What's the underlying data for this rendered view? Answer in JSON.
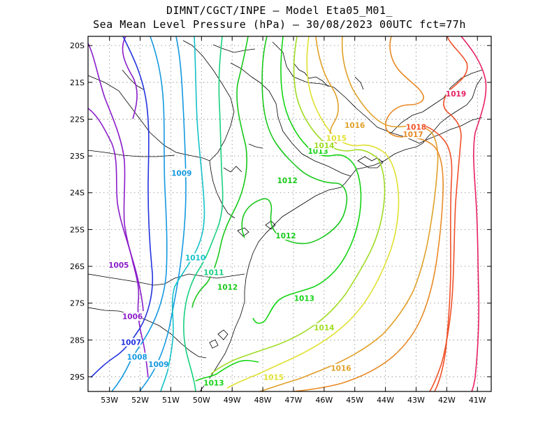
{
  "title_line1": "DIMNT/CGCT/INPE –  Model Eta05_M01_",
  "title_line2": "Sea Mean Level Pressure (hPa) – 30/08/2023 00UTC fct=77h",
  "lat_labels": [
    "20S",
    "21S",
    "22S",
    "23S",
    "24S",
    "25S",
    "26S",
    "27S",
    "28S",
    "29S"
  ],
  "lon_labels": [
    "53W",
    "52W",
    "51W",
    "50W",
    "49W",
    "48W",
    "47W",
    "46W",
    "45W",
    "44W",
    "43W",
    "42W",
    "41W"
  ],
  "colors": {
    "1005": "#8a1cc9",
    "1006": "#8a1cc9",
    "1007": "#2233dd",
    "1008": "#1499e0",
    "1009": "#1499e0",
    "1010": "#14c1c8",
    "1011": "#18d080",
    "1012": "#18c81a",
    "1013": "#14d414",
    "1014": "#a0dc24",
    "1015": "#e0e030",
    "1016": "#e0a028",
    "1017": "#e88a24",
    "1018": "#f05028",
    "1019": "#e82060",
    "coast": "#000000",
    "grid": "#888888"
  },
  "isobar_labels": [
    {
      "text": "1005",
      "lon": -52.7,
      "lat": -26.0
    },
    {
      "text": "1006",
      "lon": -52.25,
      "lat": -27.4
    },
    {
      "text": "1007",
      "lon": -52.3,
      "lat": -28.1
    },
    {
      "text": "1008",
      "lon": -52.1,
      "lat": -28.5
    },
    {
      "text": "1009",
      "lon": -51.4,
      "lat": -28.7
    },
    {
      "text": "1009",
      "lon": -50.65,
      "lat": -23.5
    },
    {
      "text": "1010",
      "lon": -50.2,
      "lat": -25.8
    },
    {
      "text": "1011",
      "lon": -49.6,
      "lat": -26.2
    },
    {
      "text": "1012",
      "lon": -49.15,
      "lat": -26.6
    },
    {
      "text": "1012",
      "lon": -47.2,
      "lat": -23.7
    },
    {
      "text": "1012",
      "lon": -47.25,
      "lat": -25.2
    },
    {
      "text": "1013",
      "lon": -46.2,
      "lat": -22.9
    },
    {
      "text": "1013",
      "lon": -46.65,
      "lat": -26.9
    },
    {
      "text": "1013",
      "lon": -49.6,
      "lat": -29.2
    },
    {
      "text": "1014",
      "lon": -46.0,
      "lat": -22.75
    },
    {
      "text": "1014",
      "lon": -46.0,
      "lat": -27.7
    },
    {
      "text": "1015",
      "lon": -45.6,
      "lat": -22.55
    },
    {
      "text": "1015",
      "lon": -47.65,
      "lat": -29.05
    },
    {
      "text": "1016",
      "lon": -45.0,
      "lat": -22.2
    },
    {
      "text": "1016",
      "lon": -45.45,
      "lat": -28.8
    },
    {
      "text": "1017",
      "lon": -43.1,
      "lat": -22.45
    },
    {
      "text": "1018",
      "lon": -43.0,
      "lat": -22.25
    },
    {
      "text": "1019",
      "lon": -41.7,
      "lat": -21.35
    }
  ]
}
